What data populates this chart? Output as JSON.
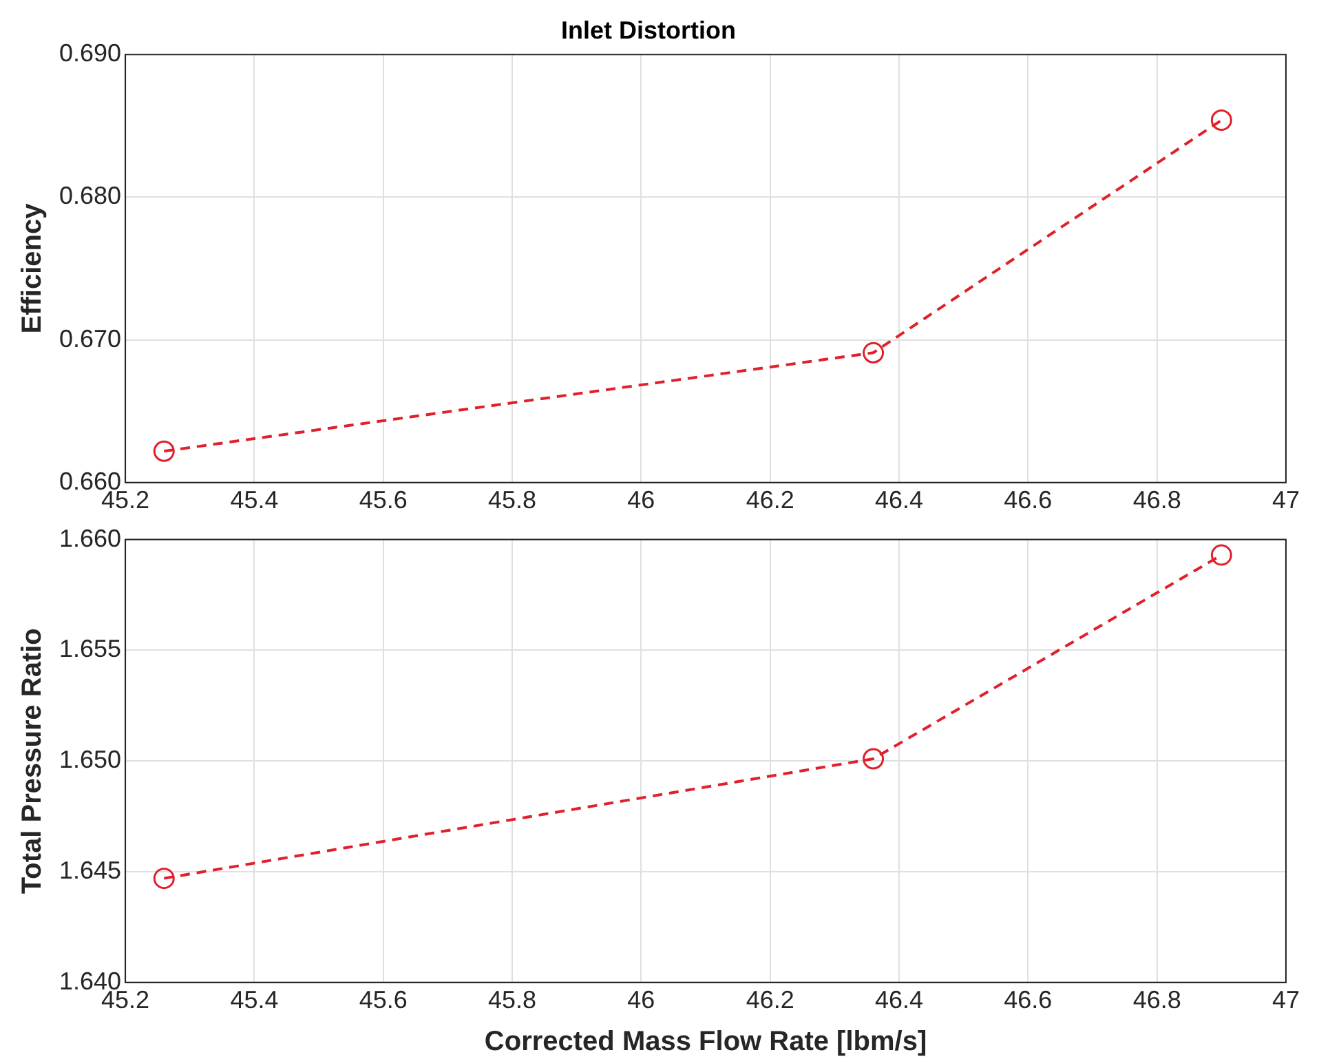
{
  "chart_data": [
    {
      "type": "line",
      "title": "Inlet Distortion",
      "ylabel": "Efficiency",
      "x": [
        45.26,
        46.36,
        46.9
      ],
      "series": [
        {
          "color": "#e0202a",
          "values": [
            0.6622,
            0.6691,
            0.6854
          ]
        }
      ],
      "xlim": [
        45.2,
        47
      ],
      "xticks": [
        45.2,
        45.4,
        45.6,
        45.8,
        46,
        46.2,
        46.4,
        46.6,
        46.8,
        47
      ],
      "ylim": [
        0.66,
        0.69
      ],
      "yticks": [
        {
          "value": 0.66,
          "label": "0.660"
        },
        {
          "value": 0.67,
          "label": "0.670"
        },
        {
          "value": 0.68,
          "label": "0.680"
        },
        {
          "value": 0.69,
          "label": "0.690"
        }
      ],
      "grid": true,
      "marker": "circle",
      "line_style": "dashed"
    },
    {
      "type": "line",
      "xlabel": "Corrected Mass Flow Rate [lbm/s]",
      "ylabel": "Total Pressure Ratio",
      "x": [
        45.26,
        46.36,
        46.9
      ],
      "series": [
        {
          "color": "#e0202a",
          "values": [
            1.6447,
            1.6501,
            1.6593
          ]
        }
      ],
      "xlim": [
        45.2,
        47
      ],
      "xticks": [
        45.2,
        45.4,
        45.6,
        45.8,
        46,
        46.2,
        46.4,
        46.6,
        46.8,
        47
      ],
      "ylim": [
        1.64,
        1.66
      ],
      "yticks": [
        {
          "value": 1.64,
          "label": "1.640"
        },
        {
          "value": 1.645,
          "label": "1.645"
        },
        {
          "value": 1.65,
          "label": "1.650"
        },
        {
          "value": 1.655,
          "label": "1.655"
        },
        {
          "value": 1.66,
          "label": "1.660"
        }
      ],
      "grid": true,
      "marker": "circle",
      "line_style": "dashed"
    }
  ]
}
